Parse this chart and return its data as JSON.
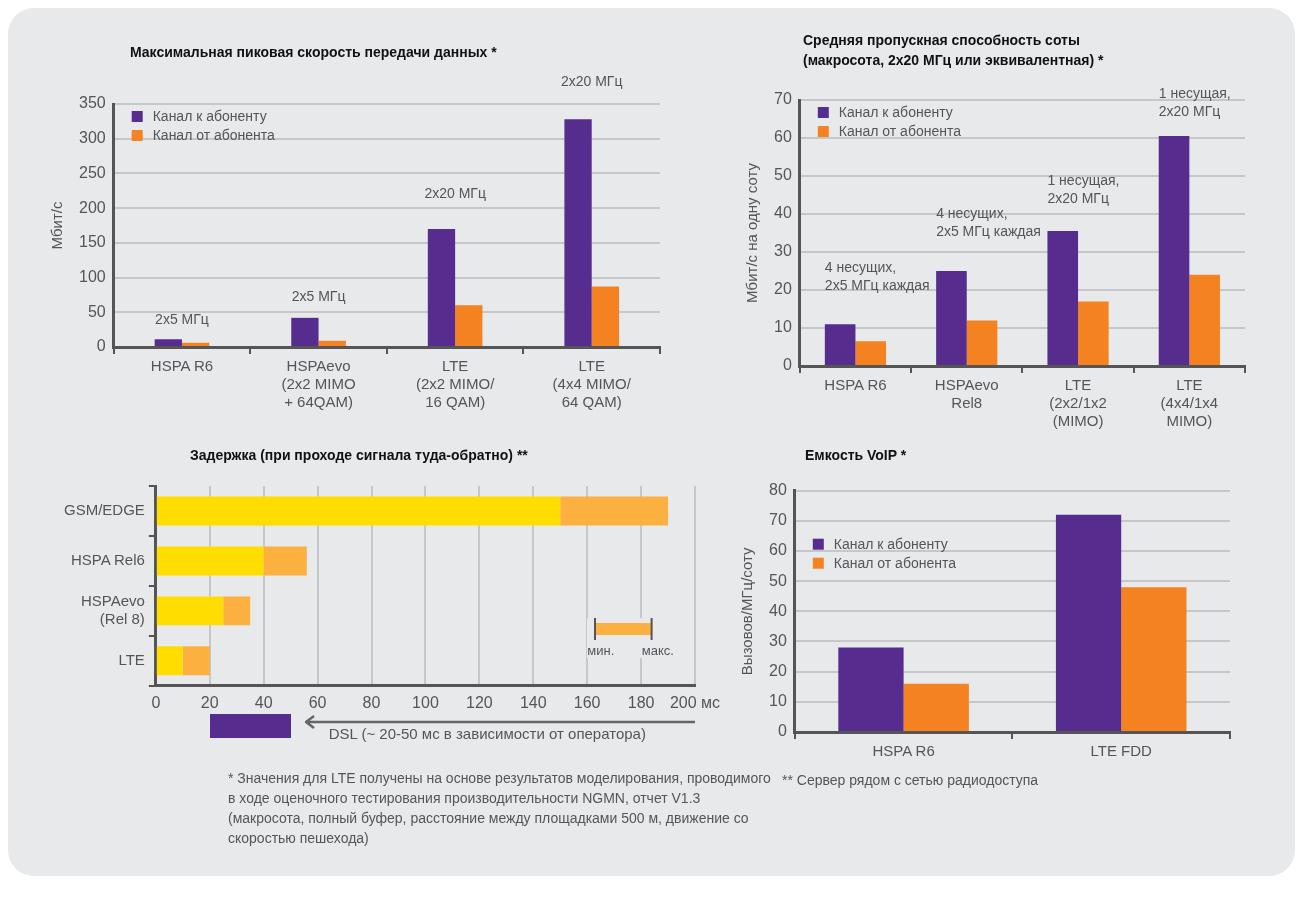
{
  "chart_data": [
    {
      "type": "bar",
      "title": "Максимальная пиковая скорость передачи данных *",
      "ylabel": "Мбит/с",
      "categories": [
        "HSPA R6",
        "HSPAevo\n(2x2 MIMO\n+ 64QAM)",
        "LTE\n(2x2 MIMO/\n16 QAM)",
        "LTE\n(4x4 MIMO/\n64 QAM)"
      ],
      "series": [
        {
          "name": "Канал к абоненту",
          "color": "#562c8e",
          "values": [
            11,
            42,
            170,
            328
          ]
        },
        {
          "name": "Канал от абонента",
          "color": "#f58220",
          "values": [
            6,
            9,
            60,
            87
          ]
        }
      ],
      "ylim": [
        0,
        350
      ],
      "yticks": [
        0,
        50,
        100,
        150,
        200,
        250,
        300,
        350
      ],
      "grid": "y",
      "legend": "top left",
      "annotations": [
        "2x5 МГц",
        "2x5 МГц",
        "2x20 МГц",
        "2x20 МГц"
      ]
    },
    {
      "type": "bar",
      "title": "Средняя пропускная способность соты\n(макросота, 2x20 МГц или эквивалентная) *",
      "ylabel": "Мбит/с на одну соту",
      "categories": [
        "HSPA R6",
        "HSPAevo\nRel8",
        "LTE\n(2x2/1x2\n(MIMO)",
        "LTE\n(4x4/1x4\nMIMO)"
      ],
      "series": [
        {
          "name": "Канал к абоненту",
          "color": "#562c8e",
          "values": [
            11,
            25,
            35.5,
            60.5
          ]
        },
        {
          "name": "Канал от абонента",
          "color": "#f58220",
          "values": [
            6.5,
            12,
            17,
            24
          ]
        }
      ],
      "ylim": [
        0,
        70
      ],
      "yticks": [
        0,
        10,
        20,
        30,
        40,
        50,
        60,
        70
      ],
      "grid": "y",
      "legend": "top left",
      "annotations": [
        "4 несущих,\n2x5 МГц каждая",
        "4 несущих,\n2x5 МГц каждая",
        "1 несущая,\n2x20 МГц",
        "1 несущая,\n2x20 МГц"
      ]
    },
    {
      "type": "bar",
      "orientation": "horizontal",
      "stacked": true,
      "title": "Задержка (при проходе сигнала туда-обратно) **",
      "categories": [
        "GSM/EDGE",
        "HSPA Rel6",
        "HSPAevo\n(Rel 8)",
        "LTE"
      ],
      "series": [
        {
          "color": "#ffdd00",
          "values": [
            150,
            40,
            25,
            10
          ]
        },
        {
          "color": "#fbb040",
          "values": [
            40,
            16,
            10,
            10
          ]
        }
      ],
      "xlim": [
        0,
        200
      ],
      "xticks": [
        0,
        20,
        40,
        60,
        80,
        100,
        120,
        140,
        160,
        180,
        {
          "value": 200,
          "label": "200 мс"
        }
      ],
      "grid": "x",
      "annotations": [
        "мин.",
        "макс.",
        "DSL (~ 20-50 мс в зависимости от оператора)",
        "* Значения для LTE получены на основе результатов моделирования, проводимого в ходе оценочного тестирования производительности NGMN, отчет V1.3 (макросота, полный буфер, расстояние между площадками 500 м, движение со скоростью пешехода)"
      ]
    },
    {
      "type": "bar",
      "title": "Емкость VoIP *",
      "ylabel": "Вызовов/МГц/соту",
      "categories": [
        "HSPA R6",
        "LTE FDD"
      ],
      "series": [
        {
          "name": "Канал к абоненту",
          "color": "#562c8e",
          "values": [
            28,
            72
          ]
        },
        {
          "name": "Канал от абонента",
          "color": "#f58220",
          "values": [
            16,
            48
          ]
        }
      ],
      "ylim": [
        0,
        80
      ],
      "yticks": [
        0,
        10,
        20,
        30,
        40,
        50,
        60,
        70,
        80
      ],
      "grid": "y",
      "legend": "left",
      "annotations": [
        "** Сервер рядом с сетью радиодоступа"
      ]
    }
  ]
}
